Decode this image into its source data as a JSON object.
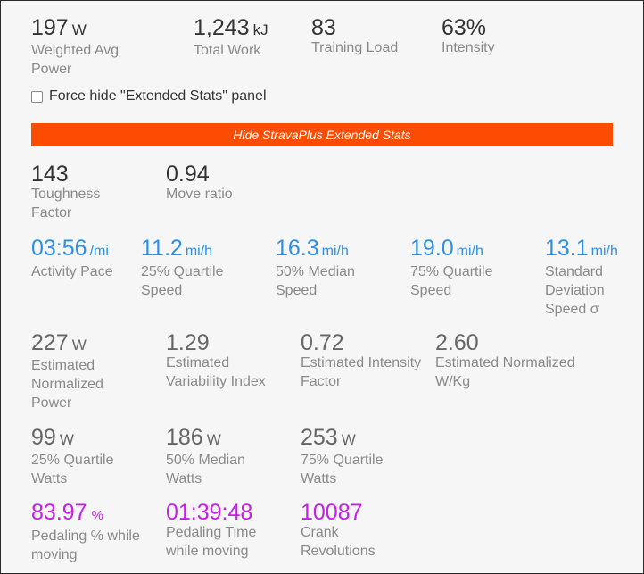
{
  "summary": [
    {
      "value": "197",
      "unit": "W",
      "label": "Weighted Avg Power"
    },
    {
      "value": "1,243",
      "unit": "kJ",
      "label": "Total Work"
    },
    {
      "value": "83",
      "unit": "",
      "label": "Training Load"
    },
    {
      "value": "63%",
      "unit": "",
      "label": "Intensity"
    }
  ],
  "force_hide": {
    "label": "Force hide \"Extended Stats\" panel",
    "checked": false
  },
  "hide_button_label": "Hide StravaPlus Extended Stats",
  "extended": {
    "toughness": {
      "value": "143",
      "label": "Toughness Factor"
    },
    "move_ratio": {
      "value": "0.94",
      "label": "Move ratio"
    },
    "speed": [
      {
        "value": "03:56",
        "unit": "/mi",
        "label": "Activity Pace"
      },
      {
        "value": "11.2",
        "unit": "mi/h",
        "label": "25% Quartile Speed"
      },
      {
        "value": "16.3",
        "unit": "mi/h",
        "label": "50% Median Speed"
      },
      {
        "value": "19.0",
        "unit": "mi/h",
        "label": "75% Quartile Speed"
      },
      {
        "value": "13.1",
        "unit": "mi/h",
        "label": "Standard Deviation Speed σ"
      }
    ],
    "power": [
      {
        "value": "227",
        "unit": "W",
        "label": "Estimated Normalized Power"
      },
      {
        "value": "1.29",
        "unit": "",
        "label": "Estimated Variability Index"
      },
      {
        "value": "0.72",
        "unit": "",
        "label": "Estimated Intensity Factor"
      },
      {
        "value": "2.60",
        "unit": "",
        "label": "Estimated Normalized W/Kg"
      }
    ],
    "watts": [
      {
        "value": "99",
        "unit": "W",
        "label": "25% Quartile Watts"
      },
      {
        "value": "186",
        "unit": "W",
        "label": "50% Median Watts"
      },
      {
        "value": "253",
        "unit": "W",
        "label": "75% Quartile Watts"
      }
    ],
    "pedaling": [
      {
        "value": "83.97",
        "unit": "%",
        "label": "Pedaling % while moving"
      },
      {
        "value": "01:39:48",
        "unit": "",
        "label": "Pedaling Time while moving"
      },
      {
        "value": "10087",
        "unit": "",
        "label": "Crank Revolutions"
      }
    ]
  },
  "colors": {
    "orange": "#fc4c02",
    "speed_blue": "#2d8fe6",
    "pedaling_purple": "#c51fe8"
  }
}
